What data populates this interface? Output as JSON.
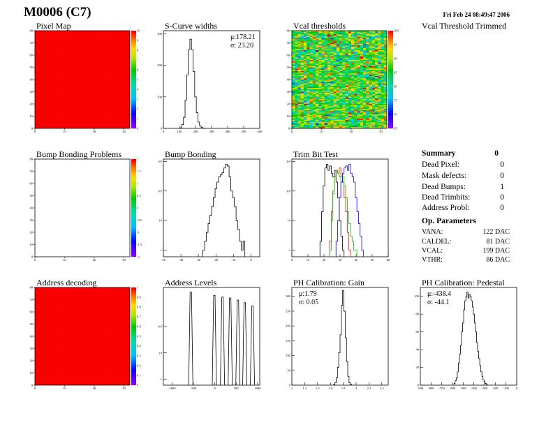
{
  "header": {
    "title": "M0006 (C7)",
    "date": "Fri Feb 24 08:49:47 2006",
    "vcal_trim_title": "Vcal Threshold Trimmed"
  },
  "summary": {
    "title": "Summary",
    "total": "0",
    "rows": [
      {
        "label": "Dead Pixel:",
        "value": "0"
      },
      {
        "label": "Mask defects:",
        "value": "0"
      },
      {
        "label": "Dead Bumps:",
        "value": "1"
      },
      {
        "label": "Dead Trimbits:",
        "value": "0"
      },
      {
        "label": "Address Probl:",
        "value": "0"
      }
    ]
  },
  "op_parameters": {
    "title": "Op. Parameters",
    "rows": [
      {
        "label": "VANA:",
        "value": "122 DAC"
      },
      {
        "label": "CALDEL:",
        "value": "81 DAC"
      },
      {
        "label": "VCAL:",
        "value": "199 DAC"
      },
      {
        "label": "VTHR:",
        "value": "86 DAC"
      }
    ]
  },
  "colors": {
    "red": "#ff0000",
    "hist": "#000000",
    "trim_green": "#00c000",
    "trim_red": "#ff0000",
    "trim_blue": "#0000ff"
  },
  "chart_data": [
    {
      "id": "pixel_map",
      "type": "heatmap",
      "title": "Pixel Map",
      "xlim": [
        0,
        32
      ],
      "ylim": [
        0,
        80
      ],
      "fill_value": 10,
      "x_ticks": [
        "0",
        "10",
        "20",
        "30"
      ],
      "y_ticks": [
        "0",
        "10",
        "20",
        "30",
        "40",
        "50",
        "60",
        "70",
        "80"
      ],
      "z_ticks": [
        "0",
        "1",
        "2",
        "3",
        "4",
        "5",
        "6",
        "7",
        "8",
        "9",
        "10"
      ]
    },
    {
      "id": "scurve_widths",
      "type": "bar",
      "title": "S-Curve widths",
      "stats": [
        "μ:178.21",
        "σ: 23.20"
      ],
      "xlim": [
        0,
        600
      ],
      "ylim": [
        0,
        310
      ],
      "x_ticks": [
        "0",
        "100",
        "200",
        "300",
        "400",
        "500",
        "600"
      ],
      "y_ticks": [
        "0",
        "100",
        "200",
        "300"
      ],
      "x": [
        110,
        120,
        130,
        140,
        150,
        160,
        170,
        180,
        190,
        200,
        210,
        220,
        230,
        240,
        250
      ],
      "values": [
        2,
        12,
        35,
        90,
        170,
        250,
        283,
        250,
        180,
        100,
        50,
        20,
        8,
        3,
        1
      ]
    },
    {
      "id": "vcal_thresholds",
      "type": "heatmap",
      "title": "Vcal thresholds",
      "xlim": [
        0,
        32
      ],
      "ylim": [
        0,
        80
      ],
      "zlim": [
        65,
        100
      ],
      "x_ticks": [
        "0",
        "10",
        "20",
        "30"
      ],
      "y_ticks": [
        "0",
        "10",
        "20",
        "30",
        "40",
        "50",
        "60",
        "70",
        "80"
      ],
      "z_ticks": [
        "65",
        "70",
        "75",
        "80",
        "85",
        "90",
        "95",
        "100"
      ]
    },
    {
      "id": "bump_bonding_problems",
      "type": "heatmap",
      "title": "Bump Bonding Problems",
      "xlim": [
        0,
        32
      ],
      "ylim": [
        0,
        80
      ],
      "zlim": [
        -2,
        2
      ],
      "x_ticks": [
        "0",
        "10",
        "20",
        "30"
      ],
      "y_ticks": [
        "0",
        "10",
        "20",
        "30",
        "40",
        "50",
        "60",
        "70",
        "80"
      ],
      "z_ticks": [
        "-2",
        "-1.5",
        "-1",
        "-0.5",
        "0",
        "0.5",
        "1",
        "1.5",
        "2"
      ]
    },
    {
      "id": "bump_bonding",
      "type": "bar",
      "title": "Bump Bonding",
      "log_y": true,
      "xlim": [
        -50,
        5
      ],
      "ylim": [
        0.6,
        1200
      ],
      "x_ticks": [
        "-50",
        "-40",
        "-30",
        "-20",
        "-10",
        "0"
      ],
      "y_ticks": [
        "1",
        "10",
        "10²",
        "10³"
      ],
      "x": [
        -27,
        -26,
        -25,
        -24,
        -23,
        -22,
        -21,
        -20,
        -19,
        -18,
        -17,
        -16,
        -15,
        -14,
        -13,
        -12,
        -11,
        -10,
        -9,
        -8,
        -7,
        -6,
        -5,
        -4
      ],
      "values": [
        1,
        2,
        4,
        8,
        15,
        30,
        60,
        120,
        200,
        300,
        350,
        420,
        600,
        800,
        700,
        300,
        100,
        60,
        30,
        10,
        5,
        2,
        1,
        2
      ]
    },
    {
      "id": "trim_bit_test",
      "type": "line",
      "title": "Trim Bit Test",
      "log_y": true,
      "xlim": [
        0,
        60
      ],
      "ylim": [
        0.6,
        1200
      ],
      "x_ticks": [
        "0",
        "10",
        "20",
        "30",
        "40",
        "50",
        "60"
      ],
      "y_ticks": [
        "1",
        "10",
        "10²",
        "10³"
      ],
      "series": [
        {
          "color": "#000000",
          "x": [
            18,
            19,
            20,
            21,
            22,
            23,
            24,
            25,
            26,
            27,
            28,
            29,
            30,
            31,
            32
          ],
          "values": [
            2,
            20,
            150,
            600,
            800,
            500,
            700,
            400,
            300,
            500,
            200,
            60,
            10,
            3,
            1
          ]
        },
        {
          "color": "#ff0000",
          "x": [
            24,
            25,
            26,
            27,
            28,
            29,
            30,
            31,
            32,
            33,
            34,
            35,
            36
          ],
          "values": [
            2,
            20,
            100,
            300,
            500,
            400,
            600,
            300,
            200,
            60,
            20,
            4,
            1
          ]
        },
        {
          "color": "#00c000",
          "x": [
            24,
            25,
            26,
            27,
            28,
            29,
            30,
            31,
            32,
            33,
            34,
            35,
            36,
            37,
            38,
            39,
            40
          ],
          "values": [
            1,
            10,
            80,
            300,
            500,
            400,
            300,
            200,
            300,
            150,
            60,
            20,
            8,
            3,
            2,
            1,
            1
          ]
        },
        {
          "color": "#0000ff",
          "x": [
            28,
            29,
            30,
            31,
            32,
            33,
            34,
            35,
            36,
            37,
            38,
            39,
            40,
            41,
            42,
            43,
            44
          ],
          "values": [
            2,
            10,
            60,
            200,
            400,
            600,
            700,
            500,
            800,
            400,
            300,
            200,
            60,
            20,
            8,
            3,
            1
          ]
        }
      ]
    },
    {
      "id": "address_decoding",
      "type": "heatmap",
      "title": "Address decoding",
      "xlim": [
        0,
        32
      ],
      "ylim": [
        0,
        80
      ],
      "fill_value": 1,
      "x_ticks": [
        "0",
        "10",
        "20",
        "30"
      ],
      "y_ticks": [
        "0",
        "10",
        "20",
        "30",
        "40",
        "50",
        "60",
        "70",
        "80"
      ],
      "z_ticks": [
        "0",
        "0.1",
        "0.2",
        "0.3",
        "0.4",
        "0.5",
        "0.6",
        "0.7",
        "0.8",
        "0.9",
        "1"
      ]
    },
    {
      "id": "address_levels",
      "type": "line",
      "title": "Address Levels",
      "log_y": true,
      "xlim": [
        -1200,
        1050
      ],
      "ylim": [
        0.6,
        3000
      ],
      "x_ticks": [
        "-1000",
        "-500",
        "0",
        "500",
        "1000"
      ],
      "y_ticks": [
        "1",
        "10",
        "10²"
      ],
      "peaks": [
        {
          "x": -560,
          "value": 2000
        },
        {
          "x": -10,
          "value": 1500
        },
        {
          "x": 180,
          "value": 1300
        },
        {
          "x": 360,
          "value": 1200
        },
        {
          "x": 540,
          "value": 1000
        },
        {
          "x": 700,
          "value": 800
        },
        {
          "x": 880,
          "value": 600
        }
      ]
    },
    {
      "id": "ph_gain",
      "type": "bar",
      "title": "PH Calibration: Gain",
      "stats": [
        "μ:1.79",
        "σ: 0.05"
      ],
      "xlim": [
        1,
        2.5
      ],
      "ylim": [
        0,
        330
      ],
      "x_ticks": [
        "1",
        "1.2",
        "1.4",
        "1.6",
        "1.8",
        "2",
        "2.2",
        "2.4"
      ],
      "y_ticks": [
        "0",
        "50",
        "100",
        "150",
        "200",
        "250",
        "300"
      ],
      "x": [
        1.66,
        1.68,
        1.7,
        1.72,
        1.74,
        1.76,
        1.78,
        1.8,
        1.82,
        1.84,
        1.86,
        1.88,
        1.9,
        1.92
      ],
      "values": [
        2,
        8,
        25,
        60,
        110,
        170,
        270,
        320,
        250,
        160,
        80,
        30,
        8,
        2
      ]
    },
    {
      "id": "ph_pedestal",
      "type": "bar",
      "title": "PH Calibration: Pedestal",
      "stats": [
        "μ:-438.4",
        "σ: -44.1"
      ],
      "xlim": [
        -900,
        0
      ],
      "ylim": [
        0,
        110
      ],
      "x_ticks": [
        "-900",
        "-800",
        "-700",
        "-600",
        "-500",
        "-400",
        "-300",
        "-200",
        "-100",
        "0"
      ],
      "y_ticks": [
        "0",
        "20",
        "40",
        "60",
        "80",
        "100"
      ],
      "x": [
        -580,
        -570,
        -560,
        -550,
        -540,
        -530,
        -520,
        -510,
        -500,
        -490,
        -480,
        -470,
        -460,
        -450,
        -440,
        -430,
        -420,
        -410,
        -400,
        -390,
        -380,
        -370,
        -360,
        -350,
        -340,
        -330,
        -320,
        -310,
        -300,
        -290,
        -280
      ],
      "values": [
        2,
        5,
        8,
        15,
        25,
        35,
        45,
        60,
        70,
        85,
        95,
        100,
        105,
        98,
        102,
        100,
        95,
        88,
        80,
        70,
        60,
        48,
        38,
        30,
        22,
        15,
        10,
        6,
        4,
        2,
        1
      ]
    }
  ]
}
